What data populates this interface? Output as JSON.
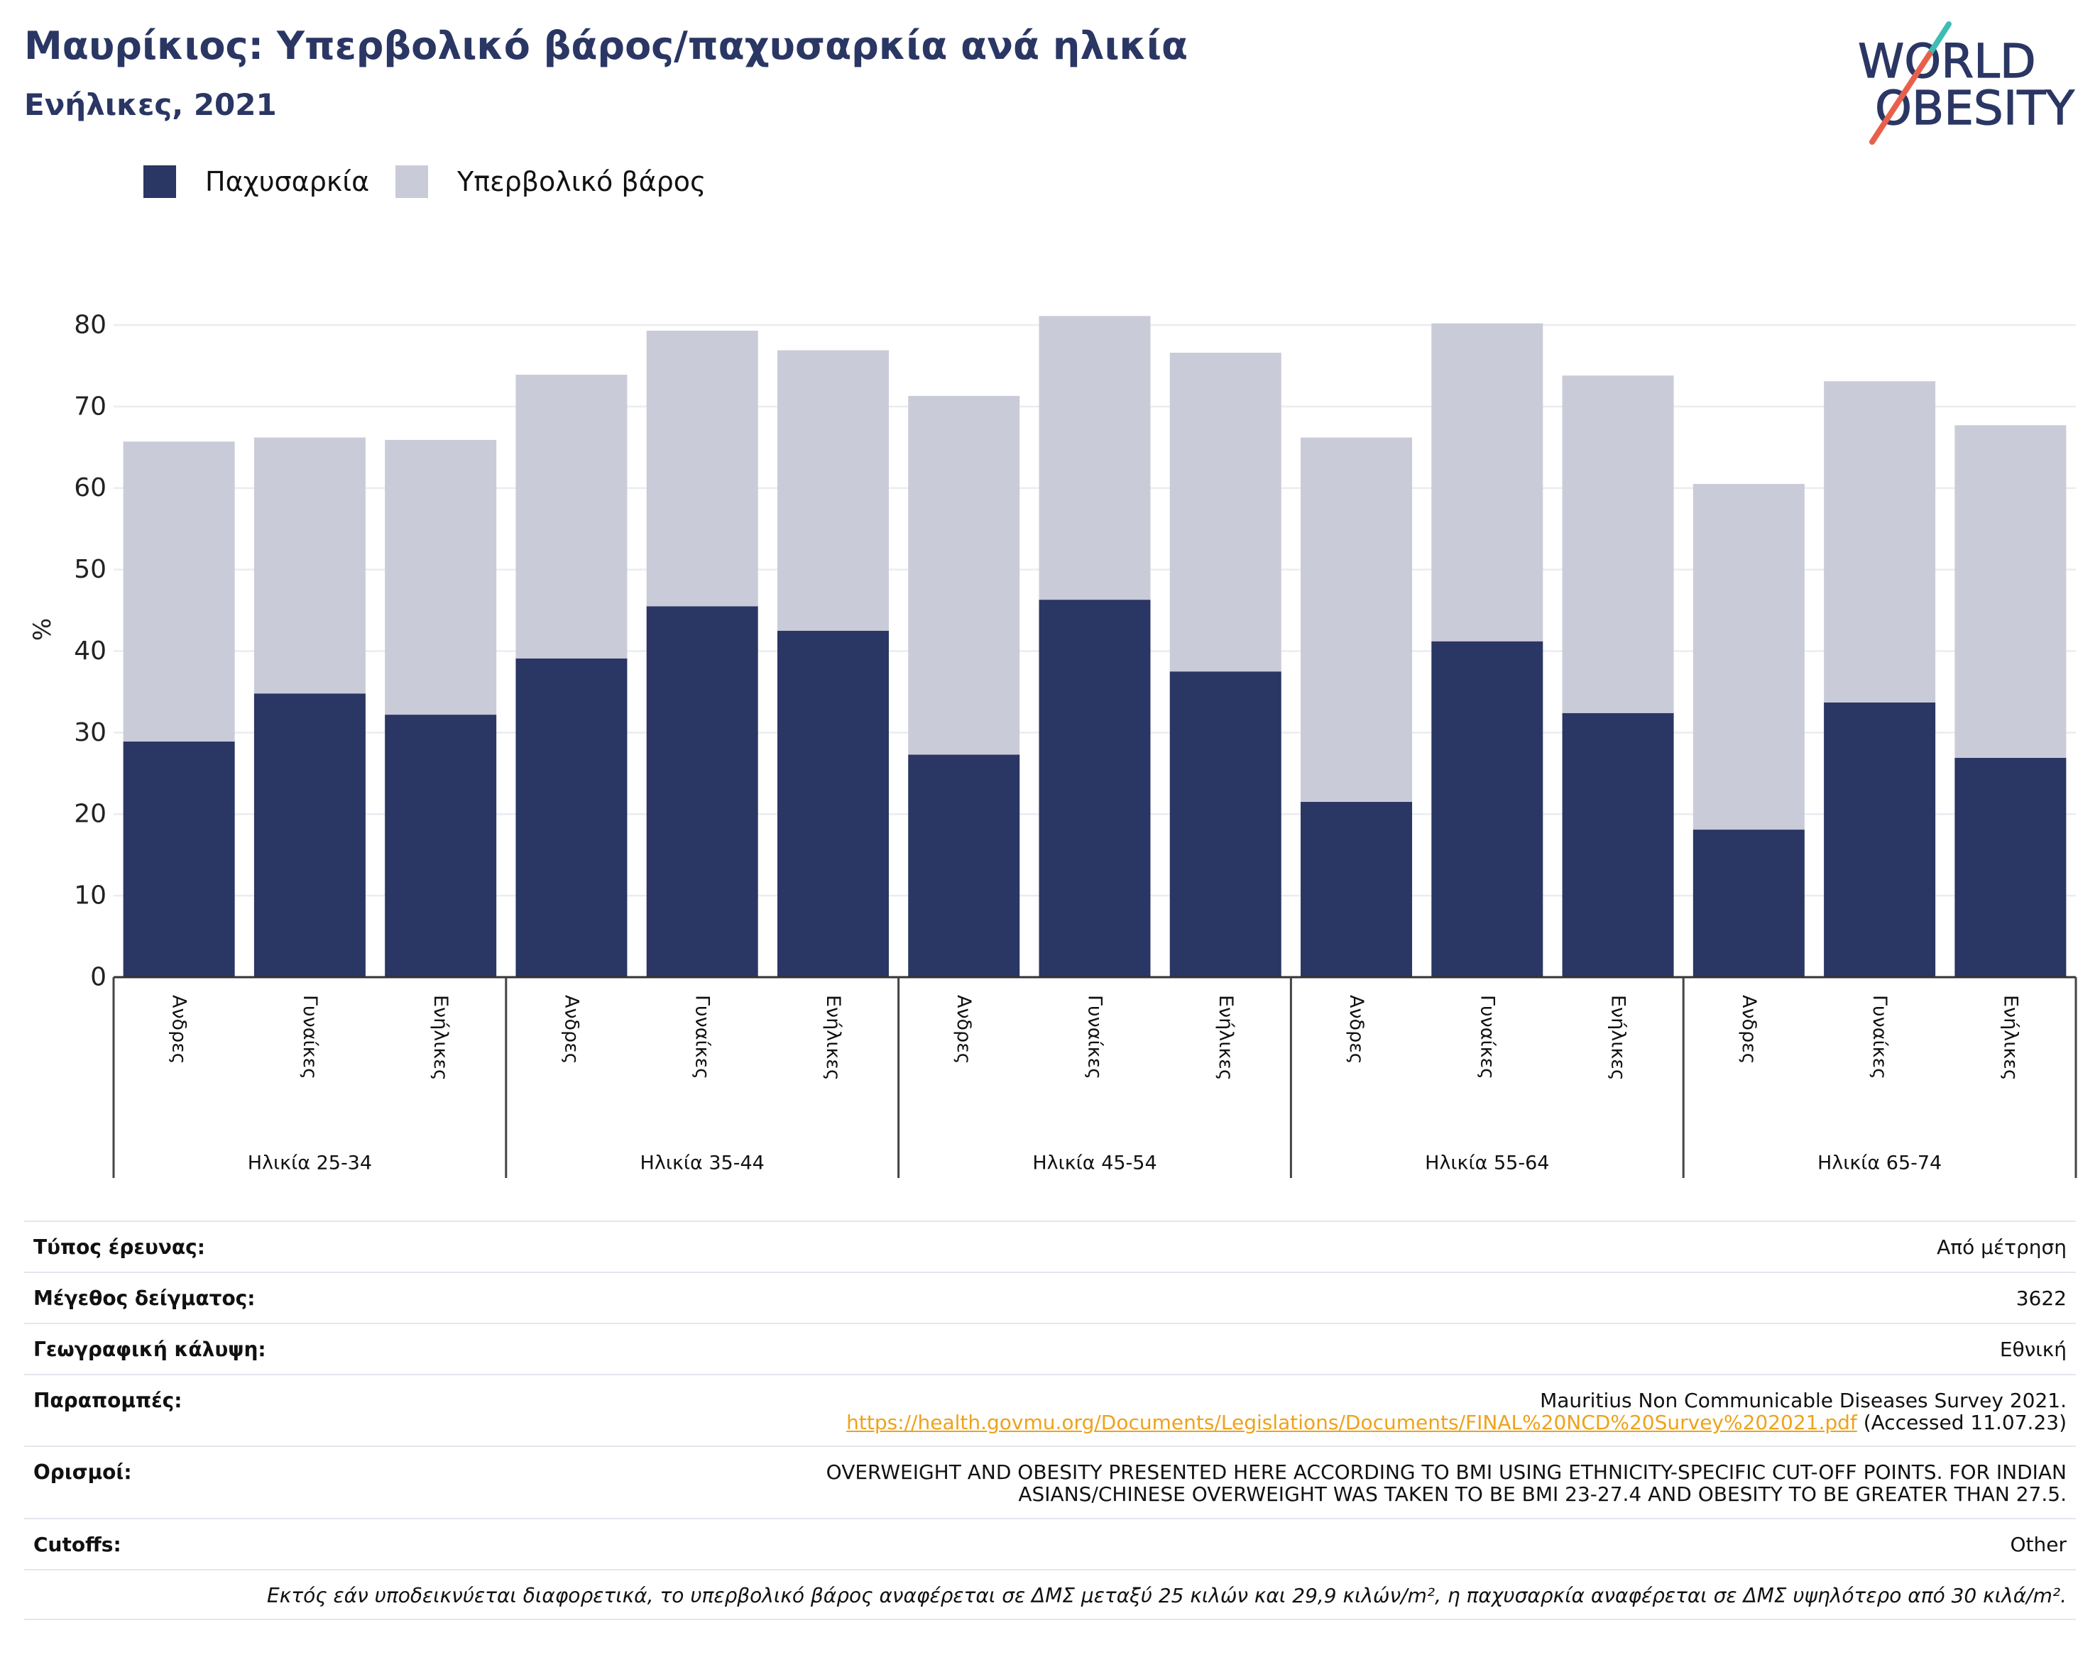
{
  "chart_data": {
    "type": "bar",
    "stacked": true,
    "title": "Μαυρίκιος: Υπερβολικό βάρος/παχυσαρκία ανά ηλικία",
    "subtitle": "Ενήλικες, 2021",
    "xlabel": "",
    "ylabel": "%",
    "ylim": [
      0,
      82
    ],
    "yticks": [
      0,
      10,
      20,
      30,
      40,
      50,
      60,
      70,
      80
    ],
    "grid": true,
    "legend_position": "top-left",
    "categories": [
      "Ανδρες",
      "Γυναίκες",
      "Ενήλικες",
      "Ανδρες",
      "Γυναίκες",
      "Ενήλικες",
      "Ανδρες",
      "Γυναίκες",
      "Ενήλικες",
      "Ανδρες",
      "Γυναίκες",
      "Ενήλικες",
      "Ανδρες",
      "Γυναίκες",
      "Ενήλικες"
    ],
    "x_groups": [
      {
        "label": "Ηλικία 25-34",
        "span": 3
      },
      {
        "label": "Ηλικία 35-44",
        "span": 3
      },
      {
        "label": "Ηλικία 45-54",
        "span": 3
      },
      {
        "label": "Ηλικία 55-64",
        "span": 3
      },
      {
        "label": "Ηλικία 65-74",
        "span": 3
      }
    ],
    "series": [
      {
        "name": "Παχυσαρκία",
        "color": "#2a3663",
        "values": [
          28.9,
          34.8,
          32.2,
          39.1,
          45.5,
          42.5,
          27.3,
          46.3,
          37.5,
          21.5,
          41.2,
          32.4,
          18.1,
          33.7,
          26.9
        ]
      },
      {
        "name": "Υπερβολικό βάρος",
        "color": "#cacbd8",
        "values": [
          36.8,
          31.4,
          33.7,
          34.8,
          33.8,
          34.4,
          44.0,
          34.8,
          39.1,
          44.7,
          39.0,
          41.4,
          42.4,
          39.4,
          40.8
        ]
      }
    ]
  },
  "logo": {
    "line1": "WORLD",
    "line2": "OBESITY"
  },
  "colors": {
    "title": "#2a3663",
    "link": "#eea21b",
    "logo_text": "#2a3663",
    "logo_teal": "#3dbdb3",
    "logo_coral": "#e8604c",
    "grid": "#ebecf2",
    "axis": "#333333",
    "rule": "#e4e6ef"
  },
  "info": {
    "survey_type": {
      "label": "Τύπος έρευνας:",
      "value": "Από μέτρηση"
    },
    "sample_size": {
      "label": "Μέγεθος δείγματος:",
      "value": "3622"
    },
    "coverage": {
      "label": "Γεωγραφική κάλυψη:",
      "value": "Εθνική"
    },
    "references": {
      "label": "Παραπομπές:",
      "citation": "Mauritius Non Communicable Diseases Survey 2021.",
      "link": "https://health.govmu.org/Documents/Legislations/Documents/FINAL%20NCD%20Survey%202021.pdf",
      "accessed": "(Accessed 11.07.23)"
    },
    "definitions": {
      "label": "Ορισμοί:",
      "lines": [
        "OVERWEIGHT AND OBESITY PRESENTED HERE ACCORDING TO BMI USING ETHNICITY-SPECIFIC CUT-OFF POINTS. FOR INDIAN",
        "ASIANS/CHINESE OVERWEIGHT WAS TAKEN TO BE BMI 23-27.4 AND OBESITY TO BE GREATER THAN 27.5."
      ]
    },
    "cutoffs": {
      "label": "Cutoffs:",
      "value": "Other"
    },
    "footnote": "Εκτός εάν υποδεικνύεται διαφορετικά, το υπερβολικό βάρος αναφέρεται σε ΔΜΣ μεταξύ 25 κιλών και 29,9 κιλών/m², η παχυσαρκία αναφέρεται σε ΔΜΣ υψηλότερο από 30 κιλά/m²."
  }
}
